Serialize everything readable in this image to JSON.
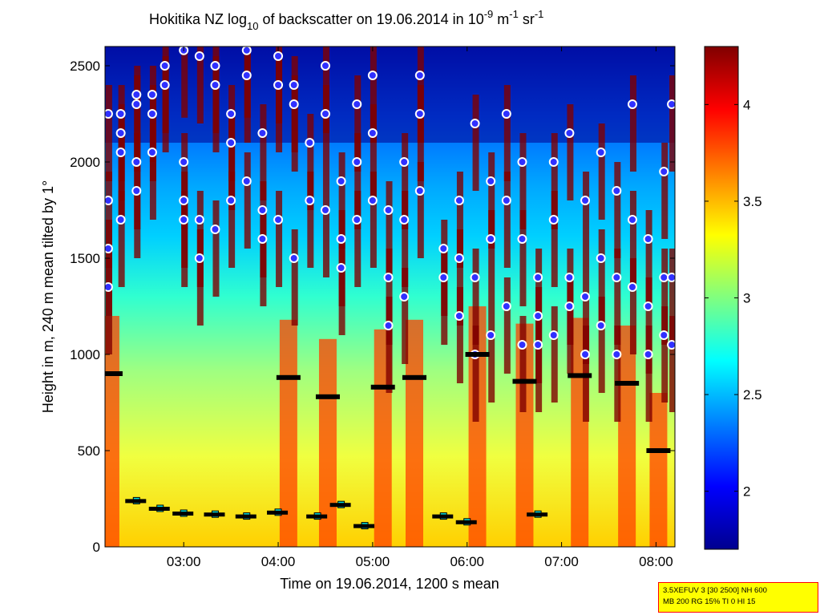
{
  "chart_data": {
    "type": "heatmap",
    "title": {
      "prefix": "Hokitika NZ log",
      "sub": "10",
      "middle": " of backscatter on 19.06.2014 in 10",
      "sup1": "-9",
      "unit_m": " m",
      "sup2": "-1",
      "unit_sr": " sr",
      "sup3": "-1"
    },
    "xlabel": "Time on 19.06.2014, 1200 s mean",
    "ylabel": "Height in m, 240 m mean tilted by 1°",
    "xlim": [
      "02:10",
      "08:12"
    ],
    "ylim": [
      0,
      2600
    ],
    "x_ticks": [
      "03:00",
      "04:00",
      "05:00",
      "06:00",
      "07:00",
      "08:00"
    ],
    "y_ticks": [
      "0",
      "500",
      "1000",
      "1500",
      "2000",
      "2500"
    ],
    "colorbar": {
      "range": [
        1.7,
        4.3
      ],
      "ticks": [
        "2",
        "2.5",
        "3",
        "3.5",
        "4"
      ],
      "colormap": "jet"
    },
    "colors": {
      "low": "#00008f",
      "mid_low": "#00a0ff",
      "mid": "#50ffb0",
      "mid_high": "#ffff00",
      "high": "#ff4000",
      "max": "#800000",
      "cloud_marker_fill": "#3030ff",
      "cloud_marker_edge": "#ffffff",
      "cbh_marker": "#d02020",
      "layer_marker": "#00e0e0",
      "mlh_marker": "#000000"
    },
    "layers": {
      "cloud_base_dense": [
        {
          "t": "02:12",
          "h": [
            1350,
            1550,
            1800,
            2250
          ]
        },
        {
          "t": "02:20",
          "h": [
            1700,
            2050,
            2150,
            2250
          ]
        },
        {
          "t": "02:30",
          "h": [
            1850,
            2000,
            2300,
            2350
          ]
        },
        {
          "t": "02:40",
          "h": [
            2050,
            2250,
            2350
          ]
        },
        {
          "t": "02:48",
          "h": [
            2400,
            2500
          ]
        },
        {
          "t": "03:00",
          "h": [
            1700,
            1800,
            2000,
            2580
          ]
        },
        {
          "t": "03:10",
          "h": [
            1500,
            1700,
            2550
          ]
        },
        {
          "t": "03:20",
          "h": [
            1650,
            2400,
            2500
          ]
        },
        {
          "t": "03:30",
          "h": [
            1800,
            2100,
            2250
          ]
        },
        {
          "t": "03:40",
          "h": [
            1900,
            2450,
            2580
          ]
        },
        {
          "t": "03:50",
          "h": [
            1600,
            1750,
            2150
          ]
        },
        {
          "t": "04:00",
          "h": [
            1700,
            2400,
            2550
          ]
        },
        {
          "t": "04:10",
          "h": [
            1500,
            2300,
            2400
          ]
        },
        {
          "t": "04:20",
          "h": [
            1800,
            2100
          ]
        },
        {
          "t": "04:30",
          "h": [
            1750,
            2250,
            2500
          ]
        },
        {
          "t": "04:40",
          "h": [
            1450,
            1600,
            1900
          ]
        },
        {
          "t": "04:50",
          "h": [
            1700,
            2000,
            2300
          ]
        },
        {
          "t": "05:00",
          "h": [
            1800,
            2150,
            2450
          ]
        },
        {
          "t": "05:10",
          "h": [
            1150,
            1400,
            1750
          ]
        },
        {
          "t": "05:20",
          "h": [
            1300,
            1700,
            2000
          ]
        },
        {
          "t": "05:30",
          "h": [
            1850,
            2250,
            2450
          ]
        },
        {
          "t": "05:45",
          "h": [
            1400,
            1550
          ]
        },
        {
          "t": "05:55",
          "h": [
            1200,
            1500,
            1800
          ]
        },
        {
          "t": "06:05",
          "h": [
            1000,
            1400,
            2200
          ]
        },
        {
          "t": "06:15",
          "h": [
            1100,
            1600,
            1900
          ]
        },
        {
          "t": "06:25",
          "h": [
            1250,
            1800,
            2250
          ]
        },
        {
          "t": "06:35",
          "h": [
            1050,
            1600,
            2000
          ]
        },
        {
          "t": "06:45",
          "h": [
            1050,
            1200,
            1400
          ]
        },
        {
          "t": "06:55",
          "h": [
            1100,
            1700,
            2000
          ]
        },
        {
          "t": "07:05",
          "h": [
            1250,
            1400,
            2150
          ]
        },
        {
          "t": "07:15",
          "h": [
            1000,
            1300,
            1800
          ]
        },
        {
          "t": "07:25",
          "h": [
            1150,
            1500,
            2050
          ]
        },
        {
          "t": "07:35",
          "h": [
            1000,
            1400,
            1850
          ]
        },
        {
          "t": "07:45",
          "h": [
            1350,
            1700,
            2300
          ]
        },
        {
          "t": "07:55",
          "h": [
            1000,
            1250,
            1600
          ]
        },
        {
          "t": "08:05",
          "h": [
            1100,
            1400,
            1950
          ]
        },
        {
          "t": "08:10",
          "h": [
            1050,
            1400,
            2300
          ]
        }
      ],
      "mixing_layer_black": [
        {
          "t": "02:12",
          "h": 900
        },
        {
          "t": "04:05",
          "h": 880
        },
        {
          "t": "04:30",
          "h": 780
        },
        {
          "t": "05:05",
          "h": 830
        },
        {
          "t": "05:25",
          "h": 880
        },
        {
          "t": "06:05",
          "h": 1000
        },
        {
          "t": "06:35",
          "h": 860
        },
        {
          "t": "07:10",
          "h": 890
        },
        {
          "t": "07:40",
          "h": 850
        },
        {
          "t": "08:00",
          "h": 500
        }
      ],
      "surface_layer_cyan": [
        {
          "t": "02:30",
          "h": 240
        },
        {
          "t": "02:45",
          "h": 200
        },
        {
          "t": "03:00",
          "h": 175
        },
        {
          "t": "03:20",
          "h": 170
        },
        {
          "t": "03:40",
          "h": 160
        },
        {
          "t": "04:00",
          "h": 180
        },
        {
          "t": "04:25",
          "h": 160
        },
        {
          "t": "04:40",
          "h": 220
        },
        {
          "t": "04:55",
          "h": 110
        },
        {
          "t": "05:45",
          "h": 160
        },
        {
          "t": "06:00",
          "h": 130
        },
        {
          "t": "06:45",
          "h": 170
        }
      ]
    }
  },
  "info_box": {
    "line1": "3.5XEFUV 3 [30 2500] NH 600",
    "line2": "MB 200 RG 15% TI 0 HI 15"
  }
}
